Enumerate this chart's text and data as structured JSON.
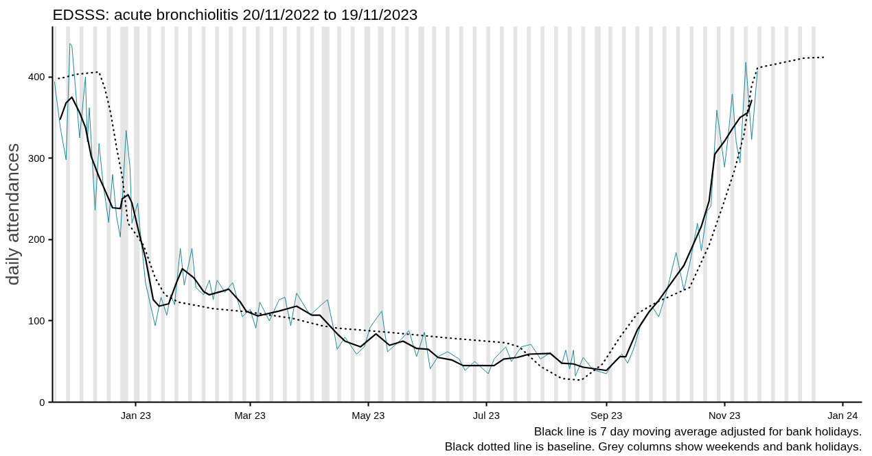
{
  "chart_data": {
    "type": "line",
    "title": "EDSSS: acute bronchiolitis 20/11/2022 to 19/11/2023",
    "ylabel": "daily attendances",
    "annotations": [
      "Black line is 7 day moving average adjusted for bank holidays.",
      "Black dotted line is baseline. Grey columns show weekends and bank holidays."
    ],
    "xlim": [
      "2022-11-19",
      "2024-01-11"
    ],
    "ylim": [
      0,
      462
    ],
    "xticks": [
      {
        "value": "2023-01-01",
        "label": "Jan 23"
      },
      {
        "value": "2023-03-01",
        "label": "Mar 23"
      },
      {
        "value": "2023-05-01",
        "label": "May 23"
      },
      {
        "value": "2023-07-01",
        "label": "Jul 23"
      },
      {
        "value": "2023-09-01",
        "label": "Sep 23"
      },
      {
        "value": "2023-11-01",
        "label": "Nov 23"
      },
      {
        "value": "2024-01-01",
        "label": "Jan 24"
      }
    ],
    "yticks": [
      0,
      100,
      200,
      300,
      400
    ],
    "grid": false,
    "series": [
      {
        "color": "#1b8a9f",
        "line_style": "solid",
        "x": [
          "2022-11-20",
          "2022-11-23",
          "2022-11-26",
          "2022-11-28",
          "2022-11-29",
          "2022-12-03",
          "2022-12-06",
          "2022-12-07",
          "2022-12-08",
          "2022-12-10",
          "2022-12-11",
          "2022-12-13",
          "2022-12-15",
          "2022-12-18",
          "2022-12-20",
          "2022-12-22",
          "2022-12-24",
          "2022-12-27",
          "2022-12-29",
          "2022-12-30",
          "2023-01-02",
          "2023-01-03",
          "2023-01-06",
          "2023-01-11",
          "2023-01-14",
          "2023-01-17",
          "2023-01-19",
          "2023-01-21",
          "2023-01-24",
          "2023-01-26",
          "2023-01-30",
          "2023-02-01",
          "2023-02-05",
          "2023-02-08",
          "2023-02-10",
          "2023-02-12",
          "2023-02-16",
          "2023-02-20",
          "2023-02-25",
          "2023-03-01",
          "2023-03-04",
          "2023-03-06",
          "2023-03-11",
          "2023-03-16",
          "2023-03-19",
          "2023-03-22",
          "2023-03-25",
          "2023-04-01",
          "2023-04-07",
          "2023-04-10",
          "2023-04-13",
          "2023-04-15",
          "2023-04-19",
          "2023-04-25",
          "2023-04-29",
          "2023-05-02",
          "2023-05-08",
          "2023-05-11",
          "2023-05-18",
          "2023-05-22",
          "2023-05-26",
          "2023-05-30",
          "2023-06-02",
          "2023-06-06",
          "2023-06-11",
          "2023-06-17",
          "2023-06-20",
          "2023-06-25",
          "2023-07-02",
          "2023-07-05",
          "2023-07-11",
          "2023-07-14",
          "2023-07-19",
          "2023-07-24",
          "2023-07-29",
          "2023-08-03",
          "2023-08-09",
          "2023-08-11",
          "2023-08-13",
          "2023-08-15",
          "2023-08-16",
          "2023-08-20",
          "2023-08-25",
          "2023-09-01",
          "2023-09-05",
          "2023-09-09",
          "2023-09-12",
          "2023-09-15",
          "2023-09-19",
          "2023-09-25",
          "2023-09-28",
          "2023-10-02",
          "2023-10-07",
          "2023-10-11",
          "2023-10-14",
          "2023-10-18",
          "2023-10-20",
          "2023-10-23",
          "2023-10-25",
          "2023-10-28",
          "2023-11-01",
          "2023-11-03",
          "2023-11-05",
          "2023-11-07",
          "2023-11-09",
          "2023-11-12",
          "2023-11-15",
          "2023-11-18"
        ],
        "values": [
          394,
          338,
          298,
          441,
          438,
          325,
          400,
          320,
          362,
          277,
          236,
          318,
          271,
          221,
          280,
          229,
          203,
          334,
          289,
          220,
          245,
          217,
          147,
          94,
          129,
          107,
          132,
          120,
          189,
          144,
          189,
          141,
          132,
          150,
          126,
          150,
          135,
          147,
          105,
          114,
          91,
          123,
          100,
          126,
          129,
          94,
          134,
          107,
          120,
          126,
          92,
          65,
          80,
          59,
          68,
          92,
          112,
          62,
          77,
          88,
          56,
          86,
          41,
          56,
          62,
          53,
          39,
          50,
          35,
          53,
          68,
          50,
          68,
          71,
          53,
          61,
          47,
          64,
          41,
          64,
          32,
          55,
          40,
          35,
          50,
          59,
          48,
          65,
          98,
          116,
          105,
          135,
          184,
          138,
          170,
          220,
          186,
          235,
          241,
          359,
          289,
          330,
          379,
          320,
          294,
          418,
          323,
          407
        ]
      },
      {
        "color": "#000000",
        "line_style": "solid",
        "x": [
          "2022-11-23",
          "2022-11-26",
          "2022-11-29",
          "2022-12-03",
          "2022-12-06",
          "2022-12-09",
          "2022-12-13",
          "2022-12-16",
          "2022-12-20",
          "2022-12-24",
          "2022-12-25",
          "2022-12-28",
          "2022-12-30",
          "2023-01-03",
          "2023-01-06",
          "2023-01-10",
          "2023-01-13",
          "2023-01-18",
          "2023-01-22",
          "2023-01-25",
          "2023-01-31",
          "2023-02-05",
          "2023-02-08",
          "2023-02-14",
          "2023-02-18",
          "2023-02-24",
          "2023-02-27",
          "2023-03-05",
          "2023-03-16",
          "2023-03-19",
          "2023-03-25",
          "2023-04-02",
          "2023-04-06",
          "2023-04-15",
          "2023-04-19",
          "2023-04-27",
          "2023-05-05",
          "2023-05-12",
          "2023-05-19",
          "2023-05-26",
          "2023-06-01",
          "2023-06-06",
          "2023-06-13",
          "2023-06-19",
          "2023-06-29",
          "2023-07-05",
          "2023-07-10",
          "2023-07-17",
          "2023-07-23",
          "2023-08-03",
          "2023-08-09",
          "2023-08-15",
          "2023-08-20",
          "2023-09-01",
          "2023-09-08",
          "2023-09-11",
          "2023-09-17",
          "2023-09-23",
          "2023-09-28",
          "2023-10-07",
          "2023-10-11",
          "2023-10-20",
          "2023-10-24",
          "2023-10-27",
          "2023-11-01",
          "2023-11-05",
          "2023-11-09",
          "2023-11-13",
          "2023-11-15"
        ],
        "values": [
          348,
          368,
          375,
          356,
          338,
          302,
          277,
          261,
          239,
          238,
          250,
          255,
          245,
          205,
          177,
          126,
          118,
          121,
          147,
          164,
          153,
          136,
          132,
          136,
          139,
          123,
          112,
          106,
          112,
          114,
          118,
          107,
          107,
          84,
          75,
          68,
          84,
          70,
          75,
          66,
          65,
          55,
          52,
          45,
          45,
          45,
          53,
          55,
          59,
          60,
          48,
          47,
          43,
          39,
          56,
          56,
          89,
          111,
          125,
          155,
          168,
          216,
          247,
          305,
          321,
          336,
          350,
          356,
          371
        ]
      },
      {
        "color": "#000000",
        "line_style": "dotted",
        "x": [
          "2022-11-20",
          "2022-11-23",
          "2022-12-01",
          "2022-12-13",
          "2022-12-16",
          "2022-12-19",
          "2022-12-22",
          "2022-12-25",
          "2022-12-28",
          "2023-01-05",
          "2023-01-11",
          "2023-01-16",
          "2023-01-23",
          "2023-02-10",
          "2023-02-28",
          "2023-03-23",
          "2023-04-07",
          "2023-04-15",
          "2023-05-11",
          "2023-06-11",
          "2023-07-11",
          "2023-07-18",
          "2023-07-29",
          "2023-08-09",
          "2023-08-19",
          "2023-08-30",
          "2023-09-08",
          "2023-09-17",
          "2023-09-27",
          "2023-10-14",
          "2023-10-24",
          "2023-10-31",
          "2023-11-06",
          "2023-11-11",
          "2023-11-15",
          "2023-11-18",
          "2023-11-26",
          "2023-12-12",
          "2023-12-22"
        ],
        "values": [
          398,
          398,
          403,
          406,
          386,
          356,
          314,
          277,
          220,
          193,
          153,
          132,
          123,
          115,
          111,
          103,
          94,
          91,
          86,
          79,
          73,
          68,
          44,
          29,
          27,
          47,
          80,
          109,
          123,
          141,
          193,
          241,
          284,
          329,
          389,
          411,
          415,
          423,
          424
        ]
      }
    ],
    "bands": [
      {
        "axis": "x",
        "from": "2022-11-20",
        "to": "2022-11-21",
        "color": "#e5e5e5"
      },
      {
        "axis": "x",
        "from": "2022-11-26",
        "to": "2022-11-28",
        "color": "#e5e5e5"
      },
      {
        "axis": "x",
        "from": "2022-12-03",
        "to": "2022-12-05",
        "color": "#e5e5e5"
      },
      {
        "axis": "x",
        "from": "2022-12-10",
        "to": "2022-12-12",
        "color": "#e5e5e5"
      },
      {
        "axis": "x",
        "from": "2022-12-17",
        "to": "2022-12-19",
        "color": "#e5e5e5"
      },
      {
        "axis": "x",
        "from": "2022-12-24",
        "to": "2022-12-28",
        "color": "#e5e5e5"
      },
      {
        "axis": "x",
        "from": "2022-12-31",
        "to": "2023-01-03",
        "color": "#e5e5e5"
      },
      {
        "axis": "x",
        "from": "2023-01-07",
        "to": "2023-01-09",
        "color": "#e5e5e5"
      },
      {
        "axis": "x",
        "from": "2023-01-14",
        "to": "2023-01-16",
        "color": "#e5e5e5"
      },
      {
        "axis": "x",
        "from": "2023-01-21",
        "to": "2023-01-23",
        "color": "#e5e5e5"
      },
      {
        "axis": "x",
        "from": "2023-01-28",
        "to": "2023-01-30",
        "color": "#e5e5e5"
      },
      {
        "axis": "x",
        "from": "2023-02-04",
        "to": "2023-02-06",
        "color": "#e5e5e5"
      },
      {
        "axis": "x",
        "from": "2023-02-11",
        "to": "2023-02-13",
        "color": "#e5e5e5"
      },
      {
        "axis": "x",
        "from": "2023-02-18",
        "to": "2023-02-20",
        "color": "#e5e5e5"
      },
      {
        "axis": "x",
        "from": "2023-02-25",
        "to": "2023-02-27",
        "color": "#e5e5e5"
      },
      {
        "axis": "x",
        "from": "2023-03-04",
        "to": "2023-03-06",
        "color": "#e5e5e5"
      },
      {
        "axis": "x",
        "from": "2023-03-11",
        "to": "2023-03-13",
        "color": "#e5e5e5"
      },
      {
        "axis": "x",
        "from": "2023-03-18",
        "to": "2023-03-20",
        "color": "#e5e5e5"
      },
      {
        "axis": "x",
        "from": "2023-03-25",
        "to": "2023-03-27",
        "color": "#e5e5e5"
      },
      {
        "axis": "x",
        "from": "2023-04-01",
        "to": "2023-04-03",
        "color": "#e5e5e5"
      },
      {
        "axis": "x",
        "from": "2023-04-07",
        "to": "2023-04-11",
        "color": "#e5e5e5"
      },
      {
        "axis": "x",
        "from": "2023-04-15",
        "to": "2023-04-17",
        "color": "#e5e5e5"
      },
      {
        "axis": "x",
        "from": "2023-04-22",
        "to": "2023-04-24",
        "color": "#e5e5e5"
      },
      {
        "axis": "x",
        "from": "2023-04-29",
        "to": "2023-05-02",
        "color": "#e5e5e5"
      },
      {
        "axis": "x",
        "from": "2023-05-06",
        "to": "2023-05-09",
        "color": "#e5e5e5"
      },
      {
        "axis": "x",
        "from": "2023-05-13",
        "to": "2023-05-15",
        "color": "#e5e5e5"
      },
      {
        "axis": "x",
        "from": "2023-05-20",
        "to": "2023-05-22",
        "color": "#e5e5e5"
      },
      {
        "axis": "x",
        "from": "2023-05-27",
        "to": "2023-05-30",
        "color": "#e5e5e5"
      },
      {
        "axis": "x",
        "from": "2023-06-03",
        "to": "2023-06-05",
        "color": "#e5e5e5"
      },
      {
        "axis": "x",
        "from": "2023-06-10",
        "to": "2023-06-12",
        "color": "#e5e5e5"
      },
      {
        "axis": "x",
        "from": "2023-06-17",
        "to": "2023-06-19",
        "color": "#e5e5e5"
      },
      {
        "axis": "x",
        "from": "2023-06-24",
        "to": "2023-06-26",
        "color": "#e5e5e5"
      },
      {
        "axis": "x",
        "from": "2023-07-01",
        "to": "2023-07-03",
        "color": "#e5e5e5"
      },
      {
        "axis": "x",
        "from": "2023-07-08",
        "to": "2023-07-10",
        "color": "#e5e5e5"
      },
      {
        "axis": "x",
        "from": "2023-07-15",
        "to": "2023-07-17",
        "color": "#e5e5e5"
      },
      {
        "axis": "x",
        "from": "2023-07-22",
        "to": "2023-07-24",
        "color": "#e5e5e5"
      },
      {
        "axis": "x",
        "from": "2023-07-29",
        "to": "2023-07-31",
        "color": "#e5e5e5"
      },
      {
        "axis": "x",
        "from": "2023-08-05",
        "to": "2023-08-07",
        "color": "#e5e5e5"
      },
      {
        "axis": "x",
        "from": "2023-08-12",
        "to": "2023-08-14",
        "color": "#e5e5e5"
      },
      {
        "axis": "x",
        "from": "2023-08-19",
        "to": "2023-08-21",
        "color": "#e5e5e5"
      },
      {
        "axis": "x",
        "from": "2023-08-26",
        "to": "2023-08-29",
        "color": "#e5e5e5"
      },
      {
        "axis": "x",
        "from": "2023-09-02",
        "to": "2023-09-04",
        "color": "#e5e5e5"
      },
      {
        "axis": "x",
        "from": "2023-09-09",
        "to": "2023-09-11",
        "color": "#e5e5e5"
      },
      {
        "axis": "x",
        "from": "2023-09-16",
        "to": "2023-09-18",
        "color": "#e5e5e5"
      },
      {
        "axis": "x",
        "from": "2023-09-23",
        "to": "2023-09-25",
        "color": "#e5e5e5"
      },
      {
        "axis": "x",
        "from": "2023-09-30",
        "to": "2023-10-02",
        "color": "#e5e5e5"
      },
      {
        "axis": "x",
        "from": "2023-10-07",
        "to": "2023-10-09",
        "color": "#e5e5e5"
      },
      {
        "axis": "x",
        "from": "2023-10-14",
        "to": "2023-10-16",
        "color": "#e5e5e5"
      },
      {
        "axis": "x",
        "from": "2023-10-21",
        "to": "2023-10-23",
        "color": "#e5e5e5"
      },
      {
        "axis": "x",
        "from": "2023-10-28",
        "to": "2023-10-30",
        "color": "#e5e5e5"
      },
      {
        "axis": "x",
        "from": "2023-11-04",
        "to": "2023-11-06",
        "color": "#e5e5e5"
      },
      {
        "axis": "x",
        "from": "2023-11-11",
        "to": "2023-11-13",
        "color": "#e5e5e5"
      },
      {
        "axis": "x",
        "from": "2023-11-18",
        "to": "2023-11-20",
        "color": "#e5e5e5"
      },
      {
        "axis": "x",
        "from": "2023-11-25",
        "to": "2023-11-27",
        "color": "#e5e5e5"
      },
      {
        "axis": "x",
        "from": "2023-12-02",
        "to": "2023-12-04",
        "color": "#e5e5e5"
      },
      {
        "axis": "x",
        "from": "2023-12-09",
        "to": "2023-12-11",
        "color": "#e5e5e5"
      },
      {
        "axis": "x",
        "from": "2023-12-16",
        "to": "2023-12-18",
        "color": "#e5e5e5"
      }
    ]
  }
}
